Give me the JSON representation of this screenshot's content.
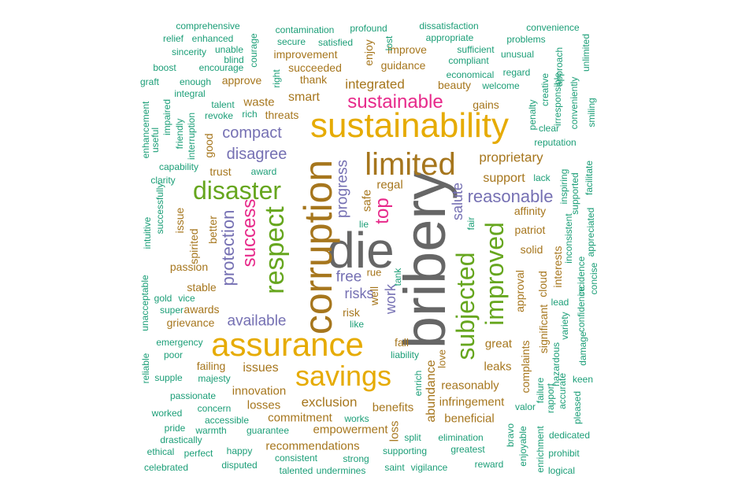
{
  "colors": {
    "teal": "#1b9e77",
    "orange": "#d95f02",
    "purple": "#7570b3",
    "magenta": "#e7298a",
    "green": "#66a61e",
    "gold": "#e6ab02",
    "brown": "#a6761d",
    "gray": "#666666"
  },
  "words": [
    {
      "text": "bribery",
      "color": "gray"
    },
    {
      "text": "die",
      "color": "gray"
    },
    {
      "text": "corruption",
      "color": "brown"
    },
    {
      "text": "sustainability",
      "color": "gold"
    },
    {
      "text": "assurance",
      "color": "gold"
    },
    {
      "text": "limited",
      "color": "brown"
    },
    {
      "text": "savings",
      "color": "gold"
    },
    {
      "text": "disaster",
      "color": "green"
    },
    {
      "text": "respect",
      "color": "green"
    },
    {
      "text": "improved",
      "color": "green"
    },
    {
      "text": "subjected",
      "color": "green"
    },
    {
      "text": "sustainable",
      "color": "magenta"
    },
    {
      "text": "success",
      "color": "magenta"
    },
    {
      "text": "protection",
      "color": "purple"
    },
    {
      "text": "reasonable",
      "color": "purple"
    },
    {
      "text": "top",
      "color": "magenta"
    },
    {
      "text": "compact",
      "color": "purple"
    },
    {
      "text": "disagree",
      "color": "purple"
    },
    {
      "text": "progress",
      "color": "purple"
    },
    {
      "text": "salute",
      "color": "purple"
    },
    {
      "text": "available",
      "color": "purple"
    },
    {
      "text": "free",
      "color": "purple"
    },
    {
      "text": "risks",
      "color": "purple"
    },
    {
      "text": "work",
      "color": "purple"
    },
    {
      "text": "exclusion",
      "color": "brown"
    },
    {
      "text": "integrated",
      "color": "brown"
    },
    {
      "text": "smart",
      "color": "brown"
    },
    {
      "text": "proprietary",
      "color": "brown"
    },
    {
      "text": "support",
      "color": "brown"
    },
    {
      "text": "abundance",
      "color": "brown"
    },
    {
      "text": "reasonably",
      "color": "brown"
    },
    {
      "text": "issues",
      "color": "brown"
    },
    {
      "text": "great",
      "color": "brown"
    },
    {
      "text": "leaks",
      "color": "brown"
    },
    {
      "text": "losses",
      "color": "brown"
    },
    {
      "text": "commitment",
      "color": "brown"
    },
    {
      "text": "innovation",
      "color": "brown"
    },
    {
      "text": "empowerment",
      "color": "brown"
    },
    {
      "text": "infringement",
      "color": "brown"
    },
    {
      "text": "beneficial",
      "color": "brown"
    },
    {
      "text": "recommendations",
      "color": "brown"
    },
    {
      "text": "benefits",
      "color": "brown"
    },
    {
      "text": "loss",
      "color": "brown"
    },
    {
      "text": "failing",
      "color": "brown"
    },
    {
      "text": "awards",
      "color": "brown"
    },
    {
      "text": "grievance",
      "color": "brown"
    },
    {
      "text": "stable",
      "color": "brown"
    },
    {
      "text": "passion",
      "color": "brown"
    },
    {
      "text": "spirited",
      "color": "brown"
    },
    {
      "text": "better",
      "color": "brown"
    },
    {
      "text": "issue",
      "color": "brown"
    },
    {
      "text": "trust",
      "color": "brown"
    },
    {
      "text": "good",
      "color": "brown"
    },
    {
      "text": "waste",
      "color": "brown"
    },
    {
      "text": "threats",
      "color": "brown"
    },
    {
      "text": "approve",
      "color": "brown"
    },
    {
      "text": "thank",
      "color": "brown"
    },
    {
      "text": "succeeded",
      "color": "brown"
    },
    {
      "text": "improvement",
      "color": "brown"
    },
    {
      "text": "improve",
      "color": "brown"
    },
    {
      "text": "guidance",
      "color": "brown"
    },
    {
      "text": "beauty",
      "color": "brown"
    },
    {
      "text": "gains",
      "color": "brown"
    },
    {
      "text": "enjoy",
      "color": "brown"
    },
    {
      "text": "regal",
      "color": "brown"
    },
    {
      "text": "safe",
      "color": "brown"
    },
    {
      "text": "affinity",
      "color": "brown"
    },
    {
      "text": "patriot",
      "color": "brown"
    },
    {
      "text": "solid",
      "color": "brown"
    },
    {
      "text": "approval",
      "color": "brown"
    },
    {
      "text": "cloud",
      "color": "brown"
    },
    {
      "text": "interests",
      "color": "brown"
    },
    {
      "text": "significant",
      "color": "brown"
    },
    {
      "text": "complaints",
      "color": "brown"
    },
    {
      "text": "love",
      "color": "brown"
    },
    {
      "text": "fall",
      "color": "brown"
    },
    {
      "text": "risk",
      "color": "brown"
    },
    {
      "text": "well",
      "color": "brown"
    },
    {
      "text": "rue",
      "color": "brown"
    },
    {
      "text": "comprehensive",
      "color": "teal"
    },
    {
      "text": "relief",
      "color": "teal"
    },
    {
      "text": "enhanced",
      "color": "teal"
    },
    {
      "text": "sincerity",
      "color": "teal"
    },
    {
      "text": "unable",
      "color": "teal"
    },
    {
      "text": "blind",
      "color": "teal"
    },
    {
      "text": "courage",
      "color": "teal"
    },
    {
      "text": "boost",
      "color": "teal"
    },
    {
      "text": "encourage",
      "color": "teal"
    },
    {
      "text": "graft",
      "color": "teal"
    },
    {
      "text": "enough",
      "color": "teal"
    },
    {
      "text": "integral",
      "color": "teal"
    },
    {
      "text": "talent",
      "color": "teal"
    },
    {
      "text": "rich",
      "color": "teal"
    },
    {
      "text": "revoke",
      "color": "teal"
    },
    {
      "text": "right",
      "color": "teal"
    },
    {
      "text": "contamination",
      "color": "teal"
    },
    {
      "text": "profound",
      "color": "teal"
    },
    {
      "text": "secure",
      "color": "teal"
    },
    {
      "text": "satisfied",
      "color": "teal"
    },
    {
      "text": "lost",
      "color": "teal"
    },
    {
      "text": "dissatisfaction",
      "color": "teal"
    },
    {
      "text": "appropriate",
      "color": "teal"
    },
    {
      "text": "sufficient",
      "color": "teal"
    },
    {
      "text": "compliant",
      "color": "teal"
    },
    {
      "text": "convenience",
      "color": "teal"
    },
    {
      "text": "problems",
      "color": "teal"
    },
    {
      "text": "unusual",
      "color": "teal"
    },
    {
      "text": "unlimited",
      "color": "teal"
    },
    {
      "text": "economical",
      "color": "teal"
    },
    {
      "text": "regard",
      "color": "teal"
    },
    {
      "text": "welcome",
      "color": "teal"
    },
    {
      "text": "approach",
      "color": "teal"
    },
    {
      "text": "creative",
      "color": "teal"
    },
    {
      "text": "irresponsible",
      "color": "teal"
    },
    {
      "text": "conveniently",
      "color": "teal"
    },
    {
      "text": "smiling",
      "color": "teal"
    },
    {
      "text": "penalty",
      "color": "teal"
    },
    {
      "text": "clear",
      "color": "teal"
    },
    {
      "text": "reputation",
      "color": "teal"
    },
    {
      "text": "enhancement",
      "color": "teal"
    },
    {
      "text": "useful",
      "color": "teal"
    },
    {
      "text": "impaired",
      "color": "teal"
    },
    {
      "text": "friendly",
      "color": "teal"
    },
    {
      "text": "interruption",
      "color": "teal"
    },
    {
      "text": "capability",
      "color": "teal"
    },
    {
      "text": "clarity",
      "color": "teal"
    },
    {
      "text": "award",
      "color": "teal"
    },
    {
      "text": "lack",
      "color": "teal"
    },
    {
      "text": "inspiring",
      "color": "teal"
    },
    {
      "text": "supported",
      "color": "teal"
    },
    {
      "text": "facilitate",
      "color": "teal"
    },
    {
      "text": "appreciated",
      "color": "teal"
    },
    {
      "text": "intuitive",
      "color": "teal"
    },
    {
      "text": "successfully",
      "color": "teal"
    },
    {
      "text": "lie",
      "color": "teal"
    },
    {
      "text": "fair",
      "color": "teal"
    },
    {
      "text": "inconsistent",
      "color": "teal"
    },
    {
      "text": "incidence",
      "color": "teal"
    },
    {
      "text": "concise",
      "color": "teal"
    },
    {
      "text": "confidence",
      "color": "teal"
    },
    {
      "text": "lead",
      "color": "teal"
    },
    {
      "text": "variety",
      "color": "teal"
    },
    {
      "text": "unacceptable",
      "color": "teal"
    },
    {
      "text": "gold",
      "color": "teal"
    },
    {
      "text": "vice",
      "color": "teal"
    },
    {
      "text": "super",
      "color": "teal"
    },
    {
      "text": "like",
      "color": "teal"
    },
    {
      "text": "tank",
      "color": "teal"
    },
    {
      "text": "emergency",
      "color": "teal"
    },
    {
      "text": "poor",
      "color": "teal"
    },
    {
      "text": "liability",
      "color": "teal"
    },
    {
      "text": "hazardous",
      "color": "teal"
    },
    {
      "text": "damage",
      "color": "teal"
    },
    {
      "text": "reliable",
      "color": "teal"
    },
    {
      "text": "supple",
      "color": "teal"
    },
    {
      "text": "majesty",
      "color": "teal"
    },
    {
      "text": "enrich",
      "color": "teal"
    },
    {
      "text": "failure",
      "color": "teal"
    },
    {
      "text": "rapport",
      "color": "teal"
    },
    {
      "text": "accurate",
      "color": "teal"
    },
    {
      "text": "keen",
      "color": "teal"
    },
    {
      "text": "passionate",
      "color": "teal"
    },
    {
      "text": "worked",
      "color": "teal"
    },
    {
      "text": "concern",
      "color": "teal"
    },
    {
      "text": "accessible",
      "color": "teal"
    },
    {
      "text": "works",
      "color": "teal"
    },
    {
      "text": "valor",
      "color": "teal"
    },
    {
      "text": "pleased",
      "color": "teal"
    },
    {
      "text": "pride",
      "color": "teal"
    },
    {
      "text": "warmth",
      "color": "teal"
    },
    {
      "text": "guarantee",
      "color": "teal"
    },
    {
      "text": "drastically",
      "color": "teal"
    },
    {
      "text": "split",
      "color": "teal"
    },
    {
      "text": "elimination",
      "color": "teal"
    },
    {
      "text": "bravo",
      "color": "teal"
    },
    {
      "text": "enjoyable",
      "color": "teal"
    },
    {
      "text": "enrichment",
      "color": "teal"
    },
    {
      "text": "dedicated",
      "color": "teal"
    },
    {
      "text": "ethical",
      "color": "teal"
    },
    {
      "text": "perfect",
      "color": "teal"
    },
    {
      "text": "happy",
      "color": "teal"
    },
    {
      "text": "consistent",
      "color": "teal"
    },
    {
      "text": "strong",
      "color": "teal"
    },
    {
      "text": "supporting",
      "color": "teal"
    },
    {
      "text": "greatest",
      "color": "teal"
    },
    {
      "text": "prohibit",
      "color": "teal"
    },
    {
      "text": "celebrated",
      "color": "teal"
    },
    {
      "text": "disputed",
      "color": "teal"
    },
    {
      "text": "talented",
      "color": "teal"
    },
    {
      "text": "undermines",
      "color": "teal"
    },
    {
      "text": "saint",
      "color": "teal"
    },
    {
      "text": "vigilance",
      "color": "teal"
    },
    {
      "text": "reward",
      "color": "teal"
    },
    {
      "text": "logical",
      "color": "teal"
    }
  ]
}
